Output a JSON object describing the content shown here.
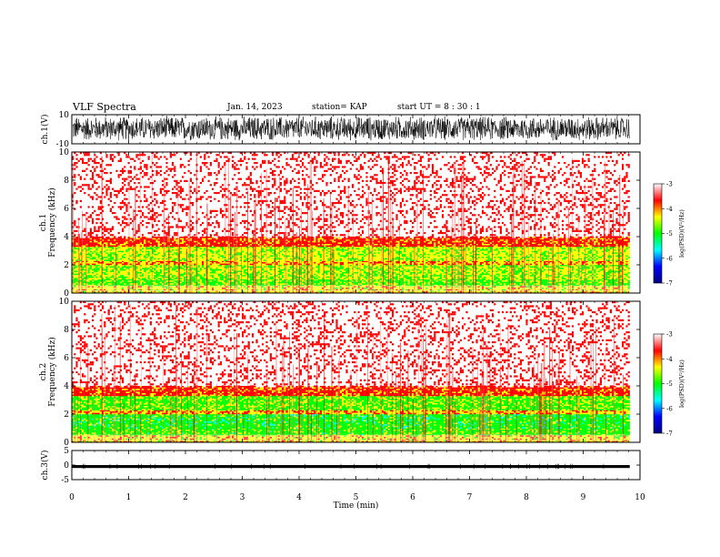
{
  "header": {
    "title": "VLF Spectra",
    "date": "Jan. 14, 2023",
    "station": "station= KAP",
    "start": "start  UT  =   8  : 30 : 1"
  },
  "chart_data": [
    {
      "type": "line",
      "panel": "ch1-waveform",
      "ylabel": "ch.1(V)",
      "ylim": [
        -10,
        10
      ],
      "y_ticks": [
        "10",
        "-10"
      ],
      "xlim": [
        0,
        9.82
      ],
      "description_of_series": "dense broadband noise filling roughly -6 to +8 V"
    },
    {
      "type": "heatmap",
      "panel": "ch1-spectrogram",
      "ylabel": "ch.1 Frequency  (kHz)",
      "ylim": [
        0,
        10
      ],
      "y_ticks": [
        "0",
        "2",
        "4",
        "6",
        "8",
        "10"
      ],
      "xlim": [
        0,
        9.82
      ],
      "bands_khz": [
        {
          "from": 0.0,
          "to": 0.5,
          "level": -4.3
        },
        {
          "from": 0.5,
          "to": 1.0,
          "level": -4.8
        },
        {
          "from": 1.0,
          "to": 2.0,
          "level": -4.6
        },
        {
          "from": 2.0,
          "to": 2.3,
          "level": -4.1
        },
        {
          "from": 2.3,
          "to": 3.3,
          "level": -4.5
        },
        {
          "from": 3.3,
          "to": 4.0,
          "level": -3.8
        },
        {
          "from": 4.0,
          "to": 10.0,
          "level": -3.3
        }
      ]
    },
    {
      "type": "heatmap",
      "panel": "ch2-spectrogram",
      "ylabel": "ch.2 Frequency  (kHz)",
      "ylim": [
        0,
        10
      ],
      "y_ticks": [
        "0",
        "2",
        "4",
        "6",
        "8",
        "10"
      ],
      "xlim": [
        0,
        9.82
      ],
      "bands_khz": [
        {
          "from": 0.0,
          "to": 0.5,
          "level": -4.3
        },
        {
          "from": 0.5,
          "to": 1.0,
          "level": -4.9
        },
        {
          "from": 1.0,
          "to": 2.0,
          "level": -5.0
        },
        {
          "from": 2.0,
          "to": 2.3,
          "level": -4.1
        },
        {
          "from": 2.3,
          "to": 3.3,
          "level": -4.8
        },
        {
          "from": 3.3,
          "to": 4.0,
          "level": -3.8
        },
        {
          "from": 4.0,
          "to": 10.0,
          "level": -3.3
        }
      ]
    },
    {
      "type": "line",
      "panel": "ch3-waveform",
      "ylabel": "ch.3(V)",
      "ylim": [
        -5,
        5
      ],
      "y_ticks": [
        "5",
        "0",
        "-5"
      ],
      "xlim": [
        0,
        9.82
      ],
      "description_of_series": "narrow constant band near -0.5 V"
    }
  ],
  "x_axis": {
    "label": "Time  (min)",
    "range": [
      0,
      10
    ],
    "ticks": [
      "0",
      "1",
      "2",
      "3",
      "4",
      "5",
      "6",
      "7",
      "8",
      "9",
      "10"
    ]
  },
  "colorbar": {
    "label": "log(PSD)(V²/Hz)",
    "range": [
      -7,
      -3
    ],
    "ticks": [
      "-3",
      "-4",
      "-5",
      "-6",
      "-7"
    ],
    "colors": [
      "#000080",
      "#0000ff",
      "#00ffff",
      "#00ff00",
      "#ffff00",
      "#ff0000",
      "#ffffff"
    ]
  }
}
